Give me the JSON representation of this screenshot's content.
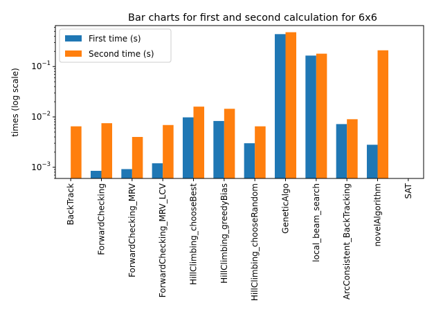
{
  "chart_data": {
    "type": "bar",
    "title": "Bar charts for first and second calculation for 6x6",
    "xlabel": "",
    "ylabel": "times (log scale)",
    "yscale": "log",
    "ylim": [
      0.0006,
      0.65
    ],
    "yticks": [
      0.001,
      0.01,
      0.1
    ],
    "ytick_labels": [
      "10",
      "10",
      "10"
    ],
    "ytick_exponents": [
      "−3",
      "−2",
      "−1"
    ],
    "grid": false,
    "legend_position": "top-left",
    "categories": [
      "BackTrack",
      "ForwardChecking",
      "ForwardChecking_MRV",
      "ForwardChecking_MRV_LCV",
      "HillClimbing_chooseBest",
      "HillClimbing_greedyBias",
      "HillClimbing_chooseRandom",
      "GeneticAlgo",
      "local_beam_search",
      "ArcConsistent_BackTracking",
      "novelAlgorithm",
      "SAT"
    ],
    "series": [
      {
        "name": "First time (s)",
        "color": "#1f77b4",
        "values": [
          null,
          0.00085,
          0.00092,
          0.0012,
          0.0098,
          0.0083,
          0.003,
          0.44,
          0.165,
          0.0072,
          0.0028,
          null
        ]
      },
      {
        "name": "Second time (s)",
        "color": "#ff7f0e",
        "values": [
          0.0065,
          0.0075,
          0.004,
          0.0069,
          0.016,
          0.0145,
          0.0065,
          0.48,
          0.18,
          0.009,
          0.21,
          null
        ]
      }
    ]
  }
}
